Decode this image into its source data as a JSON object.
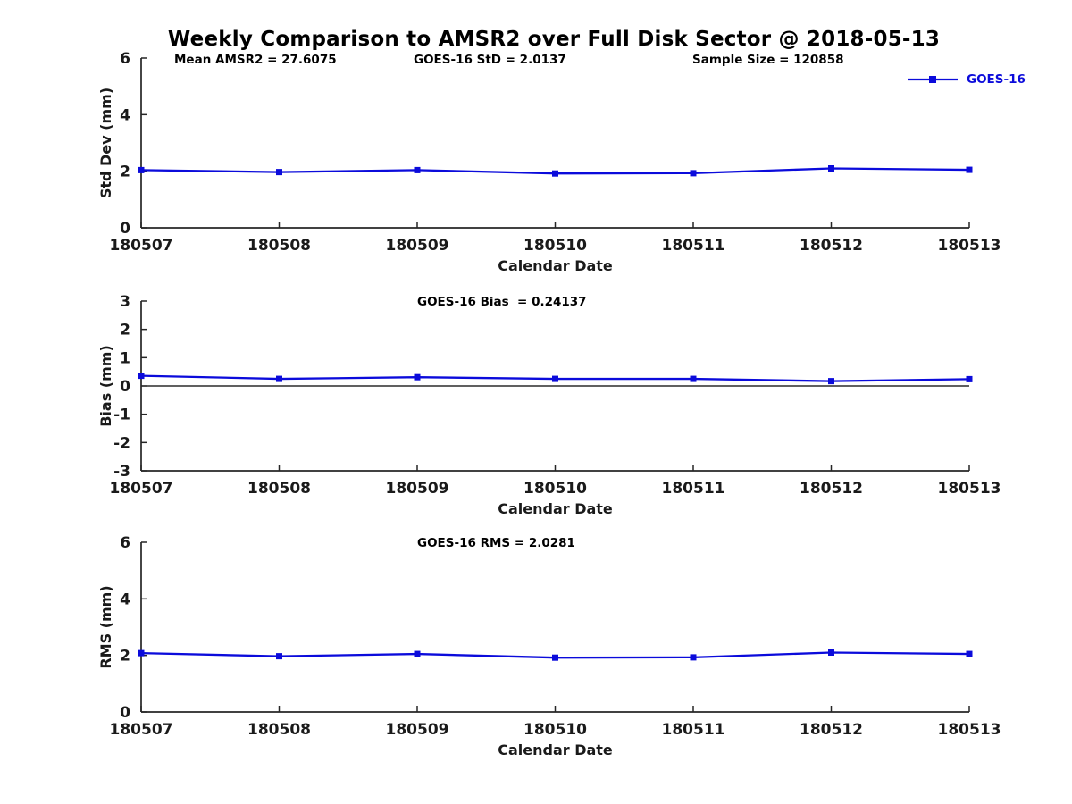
{
  "page": {
    "title": "Weekly Comparison to AMSR2 over Full Disk Sector @ 2018-05-13"
  },
  "annotations": {
    "mean_amsr2": "Mean AMSR2 = 27.6075",
    "goes16_std": "GOES-16 StD = 2.0137",
    "sample_size": "Sample Size = 120858",
    "goes16_bias": "GOES-16 Bias  = 0.24137",
    "goes16_rms": "GOES-16 RMS = 2.0281"
  },
  "legend": {
    "label": "GOES-16",
    "color": "#0b0bdb",
    "marker": "square",
    "position": "top-right"
  },
  "colors": {
    "line": "#0b0bdb",
    "axis": "#262626",
    "text": "#1a1a1a",
    "zero_line": "#000000"
  },
  "chart_data": [
    {
      "type": "line",
      "name": "std-dev",
      "categories": [
        "180507",
        "180508",
        "180509",
        "180510",
        "180511",
        "180512",
        "180513"
      ],
      "series": [
        {
          "name": "GOES-16",
          "values": [
            2.04,
            1.97,
            2.04,
            1.92,
            1.93,
            2.1,
            2.05
          ]
        }
      ],
      "xlabel": "Calendar Date",
      "ylabel": "Std Dev (mm)",
      "ylim": [
        0,
        6
      ],
      "yticks": [
        0,
        2,
        4,
        6
      ],
      "zero_line": false,
      "grid": false,
      "marker": "square",
      "color": "#0b0bdb"
    },
    {
      "type": "line",
      "name": "bias",
      "categories": [
        "180507",
        "180508",
        "180509",
        "180510",
        "180511",
        "180512",
        "180513"
      ],
      "series": [
        {
          "name": "GOES-16",
          "values": [
            0.36,
            0.25,
            0.31,
            0.25,
            0.25,
            0.17,
            0.24
          ]
        }
      ],
      "xlabel": "Calendar Date",
      "ylabel": "Bias (mm)",
      "ylim": [
        -3,
        3
      ],
      "yticks": [
        -3,
        -2,
        -1,
        0,
        1,
        2,
        3
      ],
      "zero_line": true,
      "grid": false,
      "marker": "square",
      "color": "#0b0bdb"
    },
    {
      "type": "line",
      "name": "rms",
      "categories": [
        "180507",
        "180508",
        "180509",
        "180510",
        "180511",
        "180512",
        "180513"
      ],
      "series": [
        {
          "name": "GOES-16",
          "values": [
            2.08,
            1.97,
            2.05,
            1.92,
            1.93,
            2.1,
            2.05
          ]
        }
      ],
      "xlabel": "Calendar Date",
      "ylabel": "RMS (mm)",
      "ylim": [
        0,
        6
      ],
      "yticks": [
        0,
        2,
        4,
        6
      ],
      "zero_line": false,
      "grid": false,
      "marker": "square",
      "color": "#0b0bdb"
    }
  ]
}
